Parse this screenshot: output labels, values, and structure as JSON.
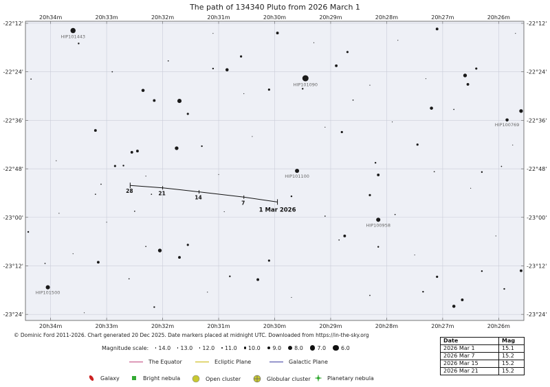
{
  "chart_data": {
    "type": "star_chart",
    "title": "The path of 134340 Pluto from 2026 March 1",
    "ra_axis": {
      "ticks": [
        "20h34m",
        "20h33m",
        "20h32m",
        "20h31m",
        "20h30m",
        "20h29m",
        "20h28m",
        "20h27m",
        "20h26m"
      ],
      "range_minutes": [
        34.45,
        25.55
      ]
    },
    "dec_axis": {
      "ticks": [
        "-22°12'",
        "-22°24'",
        "-22°36'",
        "-22°48'",
        "-23°00'",
        "-23°12'",
        "-23°24'"
      ],
      "range_arcmin": [
        -1331.5,
        -1405.5
      ]
    },
    "path": {
      "points": [
        {
          "ra_min": 29.95,
          "dec_arcmin": -1376.2,
          "label": "1 Mar 2026"
        },
        {
          "ra_min": 30.55,
          "dec_arcmin": -1375.0,
          "label": "7"
        },
        {
          "ra_min": 31.35,
          "dec_arcmin": -1373.7,
          "label": "14"
        },
        {
          "ra_min": 32.0,
          "dec_arcmin": -1372.7,
          "label": "21"
        },
        {
          "ra_min": 32.58,
          "dec_arcmin": -1372.1,
          "label": "28"
        }
      ]
    },
    "named_stars": [
      {
        "name": "HIP101443",
        "ra_min": 33.6,
        "dec_arcmin": -1333.8,
        "mag": 7.0
      },
      {
        "name": "HIP101090",
        "ra_min": 29.45,
        "dec_arcmin": -1345.6,
        "mag": 6.0
      },
      {
        "name": "HIP100769",
        "ra_min": 25.85,
        "dec_arcmin": -1355.9,
        "mag": 9.0
      },
      {
        "name": "HIP101100",
        "ra_min": 29.6,
        "dec_arcmin": -1368.5,
        "mag": 8.0
      },
      {
        "name": "HIP100958",
        "ra_min": 28.15,
        "dec_arcmin": -1380.6,
        "mag": 8.0
      },
      {
        "name": "HIP101500",
        "ra_min": 34.05,
        "dec_arcmin": -1397.3,
        "mag": 8.0
      }
    ],
    "stars": [
      [
        33.2,
        -1358.5,
        9.5
      ],
      [
        33.5,
        -1337.0,
        10.5
      ],
      [
        32.9,
        -1344.0,
        11.0
      ],
      [
        32.35,
        -1348.6,
        9.0
      ],
      [
        32.15,
        -1351.1,
        9.5
      ],
      [
        31.7,
        -1351.2,
        8.0
      ],
      [
        31.1,
        -1343.2,
        10.5
      ],
      [
        30.85,
        -1343.5,
        9.0
      ],
      [
        30.1,
        -1348.4,
        10.0
      ],
      [
        30.6,
        -1340.2,
        10.0
      ],
      [
        29.95,
        -1334.4,
        9.5
      ],
      [
        29.5,
        -1348.2,
        10.5
      ],
      [
        28.9,
        -1342.5,
        9.5
      ],
      [
        28.7,
        -1339.1,
        10.0
      ],
      [
        27.8,
        -1336.2,
        11.5
      ],
      [
        27.1,
        -1333.4,
        9.5
      ],
      [
        26.6,
        -1344.9,
        8.5
      ],
      [
        26.55,
        -1347.1,
        9.5
      ],
      [
        26.4,
        -1343.2,
        10.0
      ],
      [
        26.8,
        -1353.3,
        11.0
      ],
      [
        27.2,
        -1353.0,
        9.0
      ],
      [
        25.6,
        -1353.7,
        8.5
      ],
      [
        28.6,
        -1351.0,
        11.0
      ],
      [
        29.1,
        -1357.7,
        11.5
      ],
      [
        28.8,
        -1358.9,
        10.0
      ],
      [
        31.55,
        -1354.4,
        10.0
      ],
      [
        32.45,
        -1363.6,
        9.5
      ],
      [
        32.55,
        -1363.9,
        9.5
      ],
      [
        32.7,
        -1367.2,
        10.5
      ],
      [
        32.85,
        -1367.3,
        10.0
      ],
      [
        31.75,
        -1362.9,
        8.5
      ],
      [
        31.3,
        -1362.4,
        10.5
      ],
      [
        28.3,
        -1374.5,
        10.0
      ],
      [
        28.15,
        -1369.5,
        9.5
      ],
      [
        28.2,
        -1366.5,
        10.5
      ],
      [
        27.15,
        -1368.7,
        11.0
      ],
      [
        26.3,
        -1368.8,
        10.5
      ],
      [
        26.5,
        -1372.8,
        11.5
      ],
      [
        27.85,
        -1379.3,
        11.0
      ],
      [
        28.75,
        -1384.6,
        9.5
      ],
      [
        31.55,
        -1386.8,
        10.0
      ],
      [
        32.3,
        -1387.2,
        11.0
      ],
      [
        32.05,
        -1388.2,
        8.5
      ],
      [
        31.7,
        -1389.9,
        9.5
      ],
      [
        30.1,
        -1390.7,
        10.0
      ],
      [
        30.3,
        -1395.4,
        9.5
      ],
      [
        28.85,
        -1385.6,
        11.0
      ],
      [
        28.15,
        -1387.3,
        10.5
      ],
      [
        27.1,
        -1394.7,
        10.0
      ],
      [
        27.35,
        -1398.4,
        10.5
      ],
      [
        26.65,
        -1400.4,
        9.5
      ],
      [
        26.8,
        -1402.0,
        9.0
      ],
      [
        26.3,
        -1393.3,
        10.5
      ],
      [
        25.6,
        -1393.2,
        9.5
      ],
      [
        34.4,
        -1383.6,
        10.5
      ],
      [
        34.1,
        -1391.4,
        11.0
      ],
      [
        33.15,
        -1391.1,
        9.5
      ],
      [
        33.4,
        -1403.6,
        11.5
      ],
      [
        32.6,
        -1395.2,
        11.0
      ],
      [
        32.15,
        -1402.2,
        10.5
      ],
      [
        30.8,
        -1394.6,
        10.5
      ],
      [
        28.3,
        -1399.3,
        11.0
      ],
      [
        25.9,
        -1397.7,
        10.5
      ],
      [
        27.45,
        -1362.0,
        10.0
      ],
      [
        25.95,
        -1367.4,
        11.0
      ],
      [
        29.1,
        -1379.7,
        11.0
      ],
      [
        29.7,
        -1374.8,
        10.5
      ],
      [
        32.2,
        -1374.3,
        11.0
      ],
      [
        31.0,
        -1369.4,
        11.5
      ],
      [
        30.4,
        -1360.0,
        11.5
      ],
      [
        33.0,
        -1381.2,
        11.5
      ],
      [
        32.5,
        -1378.5,
        11.0
      ],
      [
        33.85,
        -1379.0,
        11.5
      ],
      [
        34.35,
        -1345.8,
        11.0
      ],
      [
        33.9,
        -1366.0,
        11.5
      ],
      [
        33.1,
        -1371.8,
        11.0
      ],
      [
        33.2,
        -1374.3,
        11.0
      ],
      [
        32.3,
        -1369.8,
        11.5
      ],
      [
        31.9,
        -1341.3,
        11.0
      ],
      [
        31.1,
        -1334.5,
        11.5
      ],
      [
        30.55,
        -1349.4,
        11.5
      ],
      [
        29.3,
        -1336.8,
        11.5
      ],
      [
        28.3,
        -1347.3,
        11.5
      ],
      [
        27.3,
        -1345.7,
        11.5
      ],
      [
        25.7,
        -1334.5,
        11.5
      ],
      [
        25.75,
        -1362.1,
        11.5
      ],
      [
        27.9,
        -1356.4,
        11.5
      ],
      [
        26.05,
        -1384.6,
        11.5
      ],
      [
        27.5,
        -1389.3,
        11.5
      ],
      [
        29.7,
        -1399.8,
        11.5
      ],
      [
        31.2,
        -1398.5,
        11.5
      ],
      [
        33.6,
        -1389.0,
        11.5
      ],
      [
        30.9,
        -1378.6,
        11.5
      ]
    ]
  },
  "copyright": "© Dominic Ford 2011-2026. Chart generated 20 Dec 2025. Date markers placed at midnight UTC. Downloaded from https://in-the-sky.org",
  "magnitude_scale": {
    "label": "Magnitude scale:",
    "items": [
      "14.0",
      "13.0",
      "12.0",
      "11.0",
      "10.0",
      "9.0",
      "8.0",
      "7.0",
      "6.0"
    ]
  },
  "line_legend": {
    "equator": {
      "label": "The Equator",
      "color": "#c0407a"
    },
    "ecliptic": {
      "label": "Ecliptic Plane",
      "color": "#c8b400"
    },
    "galactic": {
      "label": "Galactic Plane",
      "color": "#3a3aa0"
    }
  },
  "object_legend": {
    "galaxy": {
      "label": "Galaxy",
      "color": "#cc2222",
      "icon": "galaxy-icon"
    },
    "bright_nebula": {
      "label": "Bright nebula",
      "color": "#33aa33",
      "icon": "bright-nebula-icon"
    },
    "open_cluster": {
      "label": "Open cluster",
      "color": "#c8c830",
      "icon": "open-cluster-icon"
    },
    "globular_cluster": {
      "label": "Globular cluster",
      "color": "#c8c830",
      "icon": "globular-cluster-icon"
    },
    "planetary_nebula": {
      "label": "Planetary nebula",
      "color": "#33aa33",
      "icon": "planetary-nebula-icon"
    }
  },
  "date_table": {
    "headers": [
      "Date",
      "Mag"
    ],
    "rows": [
      [
        "2026 Mar 1",
        "15.1"
      ],
      [
        "2026 Mar 7",
        "15.2"
      ],
      [
        "2026 Mar 15",
        "15.2"
      ],
      [
        "2026 Mar 21",
        "15.2"
      ]
    ]
  }
}
